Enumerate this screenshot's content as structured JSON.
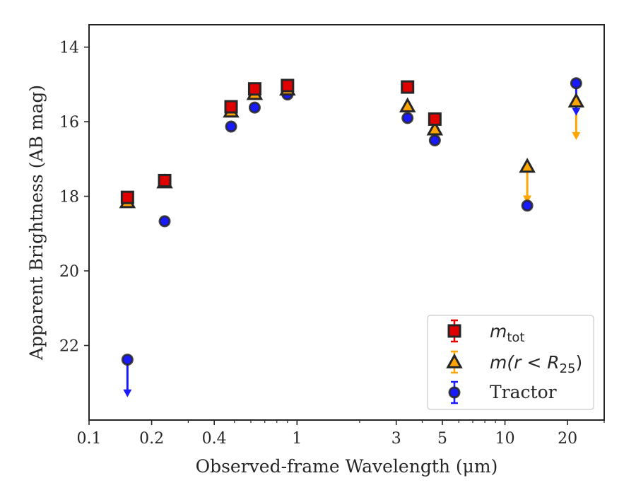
{
  "chart_data": {
    "type": "scatter",
    "title": "",
    "xlabel": "Observed-frame Wavelength (μm)",
    "ylabel": "Apparent Brightness (AB mag)",
    "xscale": "log",
    "xlim": [
      0.1,
      30
    ],
    "ylim": [
      24.0,
      13.4
    ],
    "y_inverted": true,
    "xticks": [
      0.1,
      0.2,
      0.4,
      1,
      3,
      5,
      10,
      20
    ],
    "xtick_labels": [
      "0.1",
      "0.2",
      "0.4",
      "1",
      "3",
      "5",
      "10",
      "20"
    ],
    "yticks": [
      14,
      16,
      18,
      20,
      22
    ],
    "ytick_labels": [
      "14",
      "16",
      "18",
      "20",
      "22"
    ],
    "grid": false,
    "legend_position": "lower-right",
    "series": [
      {
        "name": "m_tot",
        "legend_label": "mtot",
        "marker": "square",
        "color": "#e00000",
        "edge": "#262626",
        "errcolor": "#e00000",
        "points": [
          {
            "x": 0.153,
            "y": 18.03
          },
          {
            "x": 0.231,
            "y": 17.58
          },
          {
            "x": 0.482,
            "y": 15.6
          },
          {
            "x": 0.626,
            "y": 15.12
          },
          {
            "x": 0.9,
            "y": 15.03
          },
          {
            "x": 3.4,
            "y": 15.07
          },
          {
            "x": 4.6,
            "y": 15.93
          }
        ]
      },
      {
        "name": "m(r < R25)",
        "legend_label": "m(r < R25)",
        "marker": "triangle",
        "color": "#ffa500",
        "edge": "#262626",
        "errcolor": "#ffa500",
        "points": [
          {
            "x": 0.153,
            "y": 18.15
          },
          {
            "x": 0.231,
            "y": 17.62
          },
          {
            "x": 0.482,
            "y": 15.72
          },
          {
            "x": 0.626,
            "y": 15.25
          },
          {
            "x": 0.9,
            "y": 15.13
          },
          {
            "x": 3.4,
            "y": 15.58
          },
          {
            "x": 4.6,
            "y": 16.2
          },
          {
            "x": 12.8,
            "y": 17.2,
            "upper_limit_to": 18.15
          },
          {
            "x": 22.0,
            "y": 15.45,
            "upper_limit_to": 16.45
          }
        ]
      },
      {
        "name": "Tractor",
        "legend_label": "Tractor",
        "marker": "circle",
        "color": "#1a1aff",
        "edge": "#262626",
        "errcolor": "#1a1aff",
        "points": [
          {
            "x": 0.153,
            "y": 22.38,
            "upper_limit_to": 23.35
          },
          {
            "x": 0.231,
            "y": 18.67
          },
          {
            "x": 0.482,
            "y": 16.13
          },
          {
            "x": 0.626,
            "y": 15.62
          },
          {
            "x": 0.9,
            "y": 15.27
          },
          {
            "x": 3.4,
            "y": 15.9
          },
          {
            "x": 4.6,
            "y": 16.5
          },
          {
            "x": 12.8,
            "y": 18.25
          },
          {
            "x": 22.0,
            "y": 14.97,
            "upper_limit_to": 15.8
          }
        ]
      }
    ]
  }
}
